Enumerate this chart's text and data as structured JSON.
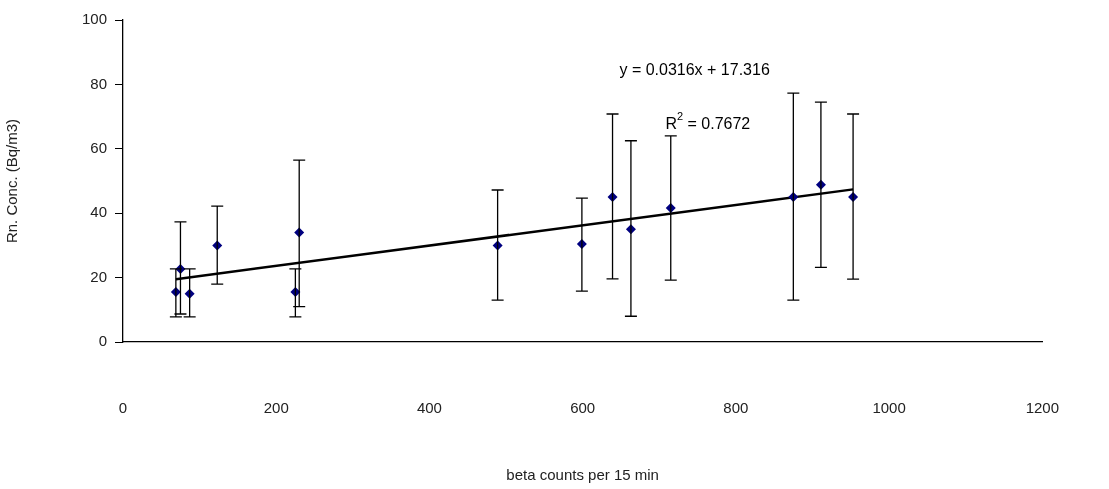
{
  "chart_data": {
    "type": "scatter",
    "xlabel": "beta counts per 15 min",
    "ylabel": "Rn. Conc. (Bq/m3)",
    "xlim": [
      0,
      1200
    ],
    "xticks": [
      0,
      200,
      400,
      600,
      800,
      1000,
      1200
    ],
    "ylim": [
      0,
      100
    ],
    "yticks": [
      0,
      20,
      40,
      60,
      80,
      100
    ],
    "grid": false,
    "legend": false,
    "x": [
      69,
      75,
      87,
      123,
      225,
      230,
      489,
      599,
      639,
      663,
      715,
      875,
      911,
      953
    ],
    "series": [
      {
        "type": "scatter",
        "color": "#000080",
        "marker": "diamond",
        "values": [
          15.5,
          22.7,
          15,
          30,
          15.5,
          34,
          30,
          30.4,
          45,
          35,
          41.6,
          45,
          48.8,
          45
        ],
        "errors": [
          [
            7.8,
            22.7
          ],
          [
            8.7,
            37.3
          ],
          [
            7.8,
            22.7
          ],
          [
            18,
            42.2
          ],
          [
            7.8,
            22.7
          ],
          [
            11,
            56.5
          ],
          [
            13,
            47.2
          ],
          [
            15.8,
            44.7
          ],
          [
            19.6,
            70.8
          ],
          [
            8,
            62.5
          ],
          [
            19.2,
            64
          ],
          [
            13,
            77.3
          ],
          [
            23.2,
            74.5
          ],
          [
            19.5,
            70.8
          ]
        ]
      },
      {
        "type": "line",
        "color": "#000000",
        "marker": "none",
        "x": [
          69,
          953
        ],
        "values": [
          19.5,
          47.4
        ]
      }
    ],
    "annotations": [
      "y = 0.0316x + 17.316",
      "R$^{2}$ = 0.7672"
    ]
  }
}
